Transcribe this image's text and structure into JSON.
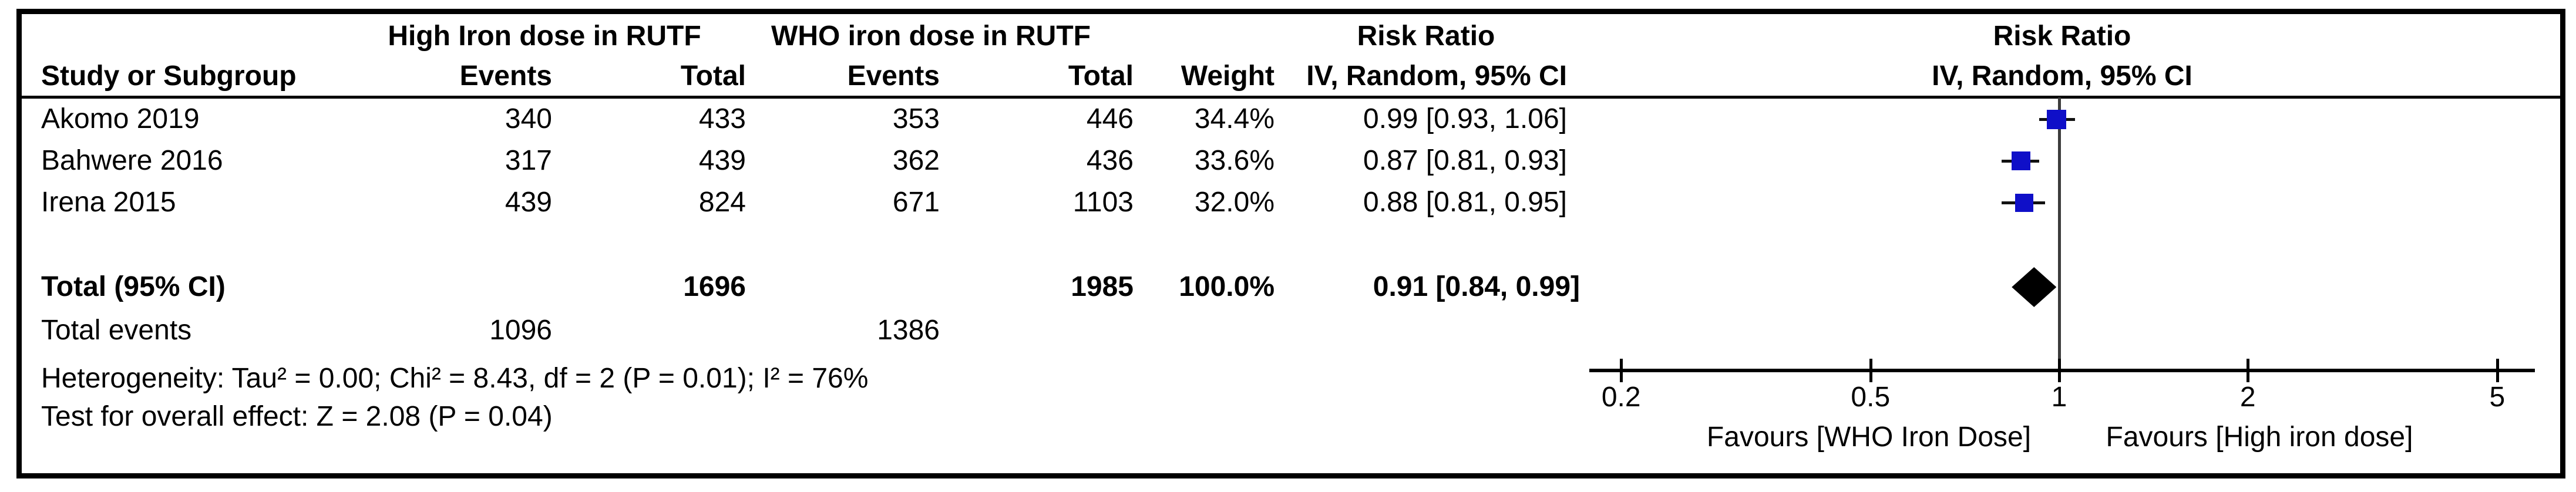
{
  "table": {
    "header_row1": {
      "group1": "High Iron dose in RUTF",
      "group2": "WHO iron dose in RUTF",
      "risk_ratio": "Risk Ratio"
    },
    "header_row2": {
      "study": "Study or Subgroup",
      "events1": "Events",
      "total1": "Total",
      "events2": "Events",
      "total2": "Total",
      "weight": "Weight",
      "iv": "IV, Random, 95% CI"
    },
    "rows": [
      {
        "study": "Akomo 2019",
        "events1": "340",
        "total1": "433",
        "events2": "353",
        "total2": "446",
        "weight": "34.4%",
        "rr_text": "0.99 [0.93, 1.06]"
      },
      {
        "study": "Bahwere 2016",
        "events1": "317",
        "total1": "439",
        "events2": "362",
        "total2": "436",
        "weight": "33.6%",
        "rr_text": "0.87 [0.81, 0.93]"
      },
      {
        "study": "Irena 2015",
        "events1": "439",
        "total1": "824",
        "events2": "671",
        "total2": "1103",
        "weight": "32.0%",
        "rr_text": "0.88 [0.81, 0.95]"
      }
    ],
    "total_row": {
      "label": "Total (95% CI)",
      "total1": "1696",
      "total2": "1985",
      "weight": "100.0%",
      "rr_text": "0.91 [0.84, 0.99]"
    },
    "total_events_row": {
      "label": "Total events",
      "events1": "1096",
      "events2": "1386"
    },
    "heterogeneity": "Heterogeneity: Tau² = 0.00; Chi² = 8.43, df = 2 (P = 0.01); I² = 76%",
    "overall_effect": "Test for overall effect: Z = 2.08 (P = 0.04)"
  },
  "plot_header": {
    "line1": "Risk Ratio",
    "line2": "IV, Random, 95% CI"
  },
  "chart_data": {
    "type": "forest",
    "effect_measure": "Risk Ratio",
    "model": "IV, Random, 95% CI",
    "scale": "log10",
    "axis_ticks": [
      0.2,
      0.5,
      1,
      2,
      5
    ],
    "xlim": [
      0.178,
      5.74
    ],
    "studies": [
      {
        "name": "Akomo 2019",
        "rr": 0.99,
        "ci_low": 0.93,
        "ci_high": 1.06,
        "weight_pct": 34.4
      },
      {
        "name": "Bahwere 2016",
        "rr": 0.87,
        "ci_low": 0.81,
        "ci_high": 0.93,
        "weight_pct": 33.6
      },
      {
        "name": "Irena 2015",
        "rr": 0.88,
        "ci_low": 0.81,
        "ci_high": 0.95,
        "weight_pct": 32.0
      }
    ],
    "total": {
      "label": "Total (95% CI)",
      "rr": 0.91,
      "ci_low": 0.84,
      "ci_high": 0.99
    },
    "favours_left": "Favours [WHO Iron Dose]",
    "favours_right": "Favours [High iron dose]",
    "marker_color": "#0f0fc8",
    "diamond_color": "#000000",
    "centerline_color": "#3c3c3c",
    "axis_color": "#000000"
  }
}
